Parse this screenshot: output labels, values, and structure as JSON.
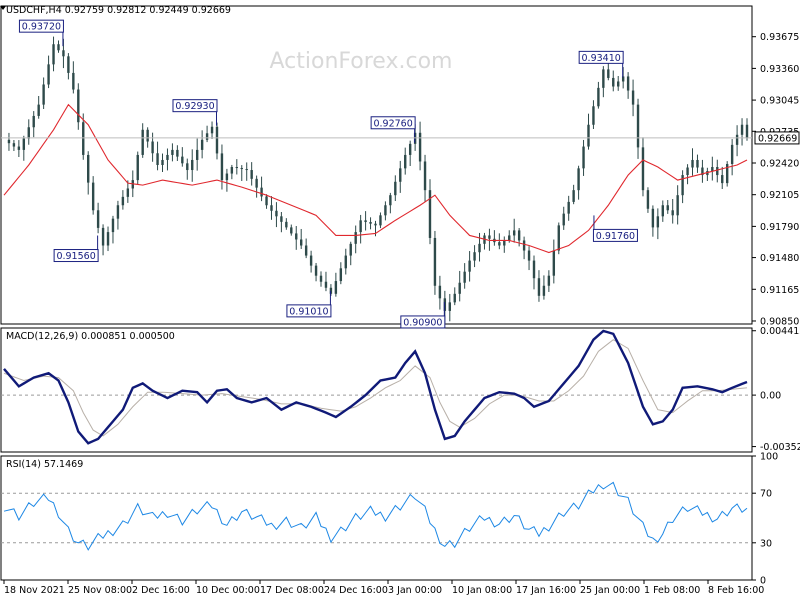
{
  "chart_data": {
    "type": "line",
    "watermark": "ActionForex.com",
    "x_labels": [
      "18 Nov 2021",
      "25 Nov 08:00",
      "2 Dec 16:00",
      "10 Dec 00:00",
      "17 Dec 08:00",
      "24 Dec 16:00",
      "3 Jan 00:00",
      "10 Jan 08:00",
      "17 Jan 16:00",
      "25 Jan 00:00",
      "1 Feb 08:00",
      "8 Feb 16:00"
    ],
    "price_panel": {
      "title": "USDCHF,H4  0.92759 0.92812 0.92449 0.92669",
      "ylim": [
        0.9082,
        0.9398
      ],
      "y_ticks": [
        "0.93675",
        "0.93360",
        "0.93045",
        "0.92735",
        "0.92420",
        "0.92105",
        "0.91790",
        "0.91480",
        "0.91165",
        "0.90850"
      ],
      "current_price": "0.92669",
      "price_anchors": [
        [
          0,
          0.9265
        ],
        [
          3,
          0.9255
        ],
        [
          7,
          0.93
        ],
        [
          10,
          0.936
        ],
        [
          12,
          0.9348
        ],
        [
          14,
          0.9315
        ],
        [
          16,
          0.925
        ],
        [
          18,
          0.9195
        ],
        [
          20,
          0.916
        ],
        [
          23,
          0.92
        ],
        [
          26,
          0.9225
        ],
        [
          28,
          0.9275
        ],
        [
          31,
          0.924
        ],
        [
          34,
          0.9255
        ],
        [
          37,
          0.9235
        ],
        [
          40,
          0.9265
        ],
        [
          42,
          0.9278
        ],
        [
          44,
          0.9225
        ],
        [
          46,
          0.9238
        ],
        [
          49,
          0.9235
        ],
        [
          53,
          0.92
        ],
        [
          57,
          0.9178
        ],
        [
          60,
          0.916
        ],
        [
          63,
          0.913
        ],
        [
          66,
          0.9112
        ],
        [
          69,
          0.915
        ],
        [
          72,
          0.9185
        ],
        [
          75,
          0.918
        ],
        [
          78,
          0.921
        ],
        [
          81,
          0.925
        ],
        [
          83,
          0.9272
        ],
        [
          85,
          0.9215
        ],
        [
          87,
          0.912
        ],
        [
          89,
          0.9095
        ],
        [
          91,
          0.9112
        ],
        [
          94,
          0.9145
        ],
        [
          97,
          0.917
        ],
        [
          100,
          0.916
        ],
        [
          103,
          0.9175
        ],
        [
          106,
          0.9145
        ],
        [
          108,
          0.911
        ],
        [
          110,
          0.913
        ],
        [
          112,
          0.918
        ],
        [
          115,
          0.9215
        ],
        [
          118,
          0.928
        ],
        [
          121,
          0.9335
        ],
        [
          123,
          0.9318
        ],
        [
          125,
          0.9328
        ],
        [
          127,
          0.93
        ],
        [
          129,
          0.9215
        ],
        [
          131,
          0.9178
        ],
        [
          133,
          0.92
        ],
        [
          135,
          0.919
        ],
        [
          137,
          0.923
        ],
        [
          139,
          0.9245
        ],
        [
          141,
          0.923
        ],
        [
          143,
          0.9238
        ],
        [
          145,
          0.9222
        ],
        [
          147,
          0.926
        ],
        [
          149,
          0.928
        ],
        [
          150,
          0.9267
        ]
      ],
      "ma_anchors": [
        [
          0,
          0.921
        ],
        [
          5,
          0.924
        ],
        [
          10,
          0.9275
        ],
        [
          13,
          0.93
        ],
        [
          17,
          0.928
        ],
        [
          21,
          0.9245
        ],
        [
          25,
          0.9222
        ],
        [
          28,
          0.922
        ],
        [
          32,
          0.9225
        ],
        [
          38,
          0.922
        ],
        [
          43,
          0.9225
        ],
        [
          48,
          0.9218
        ],
        [
          53,
          0.921
        ],
        [
          58,
          0.92
        ],
        [
          63,
          0.919
        ],
        [
          67,
          0.917
        ],
        [
          71,
          0.917
        ],
        [
          75,
          0.9172
        ],
        [
          79,
          0.9185
        ],
        [
          84,
          0.92
        ],
        [
          87,
          0.921
        ],
        [
          90,
          0.919
        ],
        [
          94,
          0.917
        ],
        [
          98,
          0.9165
        ],
        [
          102,
          0.9165
        ],
        [
          106,
          0.916
        ],
        [
          110,
          0.9153
        ],
        [
          114,
          0.916
        ],
        [
          118,
          0.9175
        ],
        [
          122,
          0.92
        ],
        [
          126,
          0.923
        ],
        [
          129,
          0.9245
        ],
        [
          132,
          0.9238
        ],
        [
          136,
          0.9225
        ],
        [
          140,
          0.923
        ],
        [
          144,
          0.9235
        ],
        [
          148,
          0.924
        ],
        [
          150,
          0.9245
        ]
      ],
      "annotations": [
        {
          "label": "0.93720",
          "bar": 12,
          "price": 0.9372,
          "side": "left",
          "dir": "up"
        },
        {
          "label": "0.92930",
          "bar": 43,
          "price": 0.9293,
          "side": "left",
          "dir": "up"
        },
        {
          "label": "0.91560",
          "bar": 19,
          "price": 0.9156,
          "side": "left",
          "dir": "down"
        },
        {
          "label": "0.91010",
          "bar": 66,
          "price": 0.9101,
          "side": "left",
          "dir": "down"
        },
        {
          "label": "0.92760",
          "bar": 83,
          "price": 0.9276,
          "side": "left",
          "dir": "up"
        },
        {
          "label": "0.90900",
          "bar": 89,
          "price": 0.909,
          "side": "left",
          "dir": "down"
        },
        {
          "label": "0.93410",
          "bar": 125,
          "price": 0.9341,
          "side": "left",
          "dir": "up"
        },
        {
          "label": "0.91760",
          "bar": 119,
          "price": 0.9176,
          "side": "right",
          "dir": "down"
        }
      ]
    },
    "macd_panel": {
      "title": "MACD(12,26,9) 0.000851 0.000500",
      "ylim": [
        -0.0039,
        0.0046
      ],
      "y_ticks": [
        "0.004412",
        "0.00",
        "-0.003528"
      ],
      "macd_anchors": [
        [
          0,
          0.0018
        ],
        [
          3,
          0.0006
        ],
        [
          6,
          0.0012
        ],
        [
          9,
          0.0015
        ],
        [
          11,
          0.001
        ],
        [
          13,
          -0.0005
        ],
        [
          15,
          -0.0025
        ],
        [
          17,
          -0.0033
        ],
        [
          19,
          -0.003
        ],
        [
          21,
          -0.0022
        ],
        [
          24,
          -0.001
        ],
        [
          26,
          0.0005
        ],
        [
          28,
          0.0008
        ],
        [
          30,
          0.0003
        ],
        [
          33,
          -0.0002
        ],
        [
          36,
          0.0003
        ],
        [
          39,
          0.0002
        ],
        [
          41,
          -0.0005
        ],
        [
          43,
          0.0003
        ],
        [
          45,
          0.0004
        ],
        [
          47,
          -0.0002
        ],
        [
          50,
          -0.0005
        ],
        [
          53,
          -0.0002
        ],
        [
          56,
          -0.001
        ],
        [
          59,
          -0.0005
        ],
        [
          62,
          -0.0008
        ],
        [
          65,
          -0.0012
        ],
        [
          67,
          -0.0015
        ],
        [
          70,
          -0.0008
        ],
        [
          73,
          0.0
        ],
        [
          76,
          0.001
        ],
        [
          79,
          0.0012
        ],
        [
          81,
          0.0022
        ],
        [
          83,
          0.003
        ],
        [
          85,
          0.0015
        ],
        [
          87,
          -0.001
        ],
        [
          89,
          -0.003
        ],
        [
          91,
          -0.0028
        ],
        [
          93,
          -0.0018
        ],
        [
          95,
          -0.001
        ],
        [
          97,
          -0.0002
        ],
        [
          100,
          0.0002
        ],
        [
          103,
          0.0001
        ],
        [
          105,
          -0.0002
        ],
        [
          107,
          -0.0008
        ],
        [
          110,
          -0.0004
        ],
        [
          113,
          0.0008
        ],
        [
          116,
          0.002
        ],
        [
          119,
          0.0038
        ],
        [
          121,
          0.0044
        ],
        [
          123,
          0.0042
        ],
        [
          126,
          0.0022
        ],
        [
          129,
          -0.0008
        ],
        [
          131,
          -0.002
        ],
        [
          133,
          -0.0018
        ],
        [
          135,
          -0.001
        ],
        [
          137,
          0.0005
        ],
        [
          140,
          0.0006
        ],
        [
          143,
          0.0004
        ],
        [
          145,
          0.0002
        ],
        [
          147,
          0.0005
        ],
        [
          150,
          0.0009
        ]
      ],
      "signal_anchors": [
        [
          0,
          0.0015
        ],
        [
          4,
          0.001
        ],
        [
          8,
          0.0013
        ],
        [
          11,
          0.0012
        ],
        [
          14,
          0.0003
        ],
        [
          16,
          -0.0012
        ],
        [
          18,
          -0.0024
        ],
        [
          20,
          -0.0028
        ],
        [
          23,
          -0.002
        ],
        [
          26,
          -0.0008
        ],
        [
          29,
          0.0002
        ],
        [
          32,
          0.0002
        ],
        [
          36,
          0.0001
        ],
        [
          40,
          0.0
        ],
        [
          44,
          0.0001
        ],
        [
          48,
          -0.0001
        ],
        [
          52,
          -0.0003
        ],
        [
          56,
          -0.0006
        ],
        [
          60,
          -0.0006
        ],
        [
          64,
          -0.0009
        ],
        [
          68,
          -0.0011
        ],
        [
          71,
          -0.0008
        ],
        [
          74,
          -0.0002
        ],
        [
          77,
          0.0005
        ],
        [
          80,
          0.001
        ],
        [
          83,
          0.002
        ],
        [
          86,
          0.0012
        ],
        [
          88,
          -0.0005
        ],
        [
          90,
          -0.0018
        ],
        [
          92,
          -0.0022
        ],
        [
          95,
          -0.0016
        ],
        [
          98,
          -0.0006
        ],
        [
          101,
          0.0
        ],
        [
          104,
          0.0
        ],
        [
          108,
          -0.0004
        ],
        [
          111,
          -0.0004
        ],
        [
          114,
          0.0003
        ],
        [
          117,
          0.0013
        ],
        [
          120,
          0.003
        ],
        [
          123,
          0.0038
        ],
        [
          126,
          0.0032
        ],
        [
          129,
          0.001
        ],
        [
          132,
          -0.001
        ],
        [
          135,
          -0.0012
        ],
        [
          138,
          -0.0004
        ],
        [
          141,
          0.0003
        ],
        [
          144,
          0.0003
        ],
        [
          147,
          0.0004
        ],
        [
          150,
          0.0005
        ]
      ]
    },
    "rsi_panel": {
      "title": "RSI(14) 57.1469",
      "ylim": [
        0,
        100
      ],
      "y_ticks": [
        "100",
        "70",
        "30",
        "0"
      ],
      "levels": [
        70,
        30
      ],
      "rsi_anchors": [
        [
          0,
          60
        ],
        [
          3,
          52
        ],
        [
          6,
          62
        ],
        [
          9,
          66
        ],
        [
          11,
          55
        ],
        [
          13,
          40
        ],
        [
          15,
          30
        ],
        [
          17,
          27
        ],
        [
          19,
          33
        ],
        [
          21,
          38
        ],
        [
          24,
          45
        ],
        [
          27,
          58
        ],
        [
          30,
          50
        ],
        [
          33,
          55
        ],
        [
          36,
          48
        ],
        [
          39,
          56
        ],
        [
          42,
          60
        ],
        [
          45,
          45
        ],
        [
          48,
          55
        ],
        [
          51,
          50
        ],
        [
          54,
          44
        ],
        [
          57,
          48
        ],
        [
          60,
          42
        ],
        [
          63,
          50
        ],
        [
          66,
          35
        ],
        [
          68,
          40
        ],
        [
          71,
          50
        ],
        [
          74,
          55
        ],
        [
          77,
          52
        ],
        [
          80,
          60
        ],
        [
          83,
          68
        ],
        [
          85,
          55
        ],
        [
          87,
          40
        ],
        [
          89,
          28
        ],
        [
          91,
          30
        ],
        [
          94,
          42
        ],
        [
          97,
          50
        ],
        [
          100,
          46
        ],
        [
          103,
          52
        ],
        [
          106,
          40
        ],
        [
          108,
          37
        ],
        [
          110,
          44
        ],
        [
          113,
          55
        ],
        [
          116,
          60
        ],
        [
          119,
          72
        ],
        [
          121,
          78
        ],
        [
          123,
          76
        ],
        [
          126,
          63
        ],
        [
          129,
          42
        ],
        [
          131,
          32
        ],
        [
          133,
          38
        ],
        [
          135,
          50
        ],
        [
          138,
          58
        ],
        [
          141,
          54
        ],
        [
          144,
          50
        ],
        [
          147,
          58
        ],
        [
          150,
          57
        ]
      ]
    }
  }
}
